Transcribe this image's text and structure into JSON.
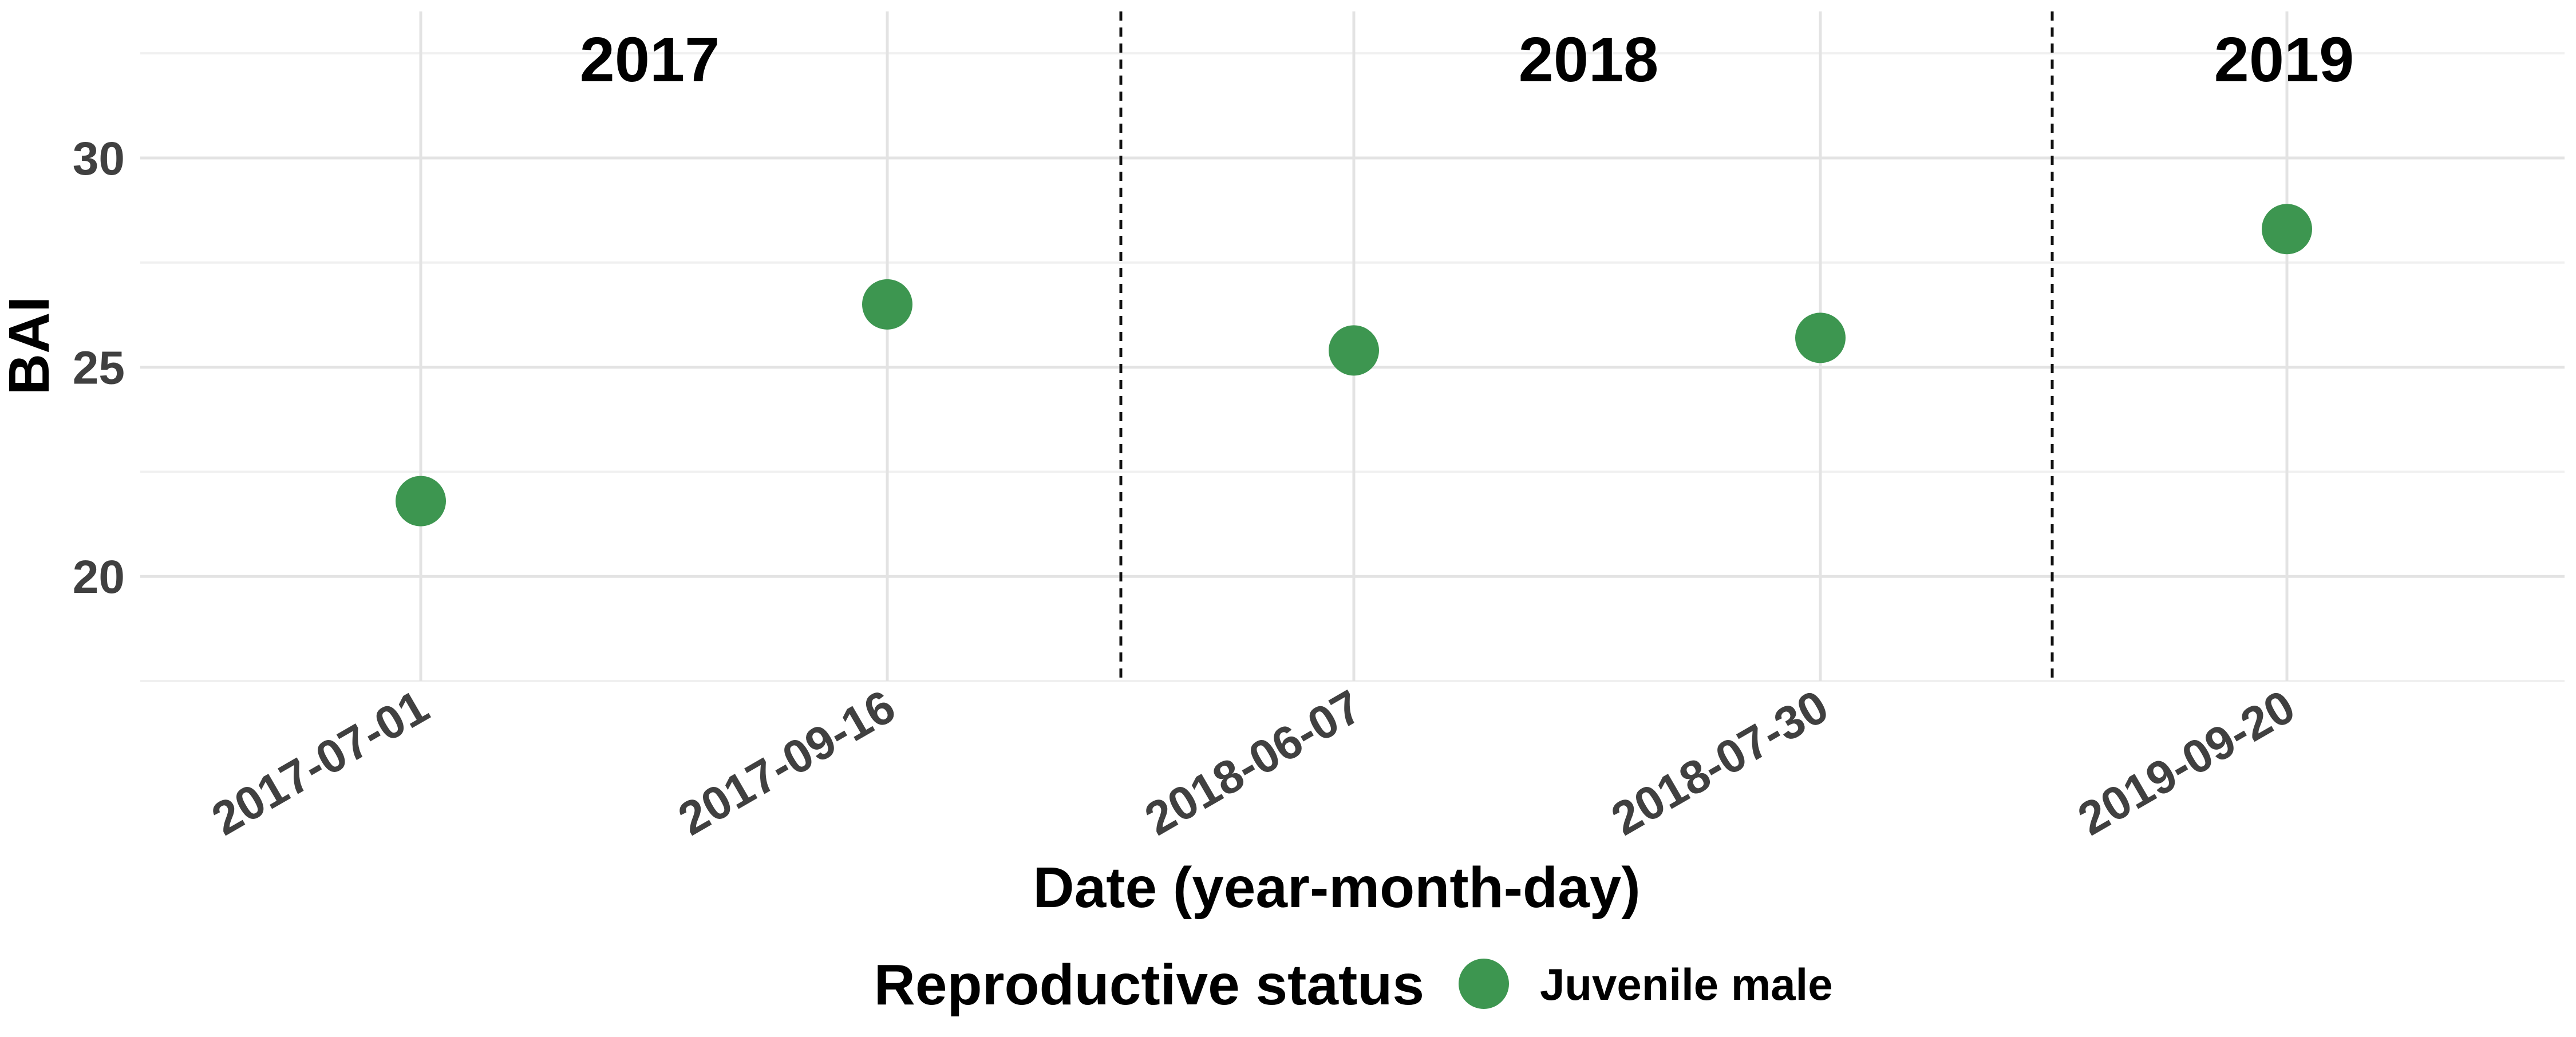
{
  "chart_data": {
    "type": "scatter",
    "title": "",
    "xlabel": "Date (year-month-day)",
    "ylabel": "BAI",
    "x_tick_labels": [
      "2017-07-01",
      "2017-09-16",
      "2018-06-07",
      "2018-07-30",
      "2019-09-20"
    ],
    "y_ticks": [
      "20",
      "25",
      "30"
    ],
    "ylim": [
      17.5,
      33.5
    ],
    "grid": true,
    "year_panels": [
      "2017",
      "2018",
      "2019"
    ],
    "series": [
      {
        "name": "Juvenile male",
        "color": "#3d9650",
        "points": [
          {
            "x": "2017-07-01",
            "y": 21.8
          },
          {
            "x": "2017-09-16",
            "y": 26.5
          },
          {
            "x": "2018-06-07",
            "y": 25.4
          },
          {
            "x": "2018-07-30",
            "y": 25.7
          },
          {
            "x": "2019-09-20",
            "y": 28.3
          }
        ]
      }
    ],
    "legend": {
      "title": "Reproductive status",
      "position": "bottom"
    }
  }
}
